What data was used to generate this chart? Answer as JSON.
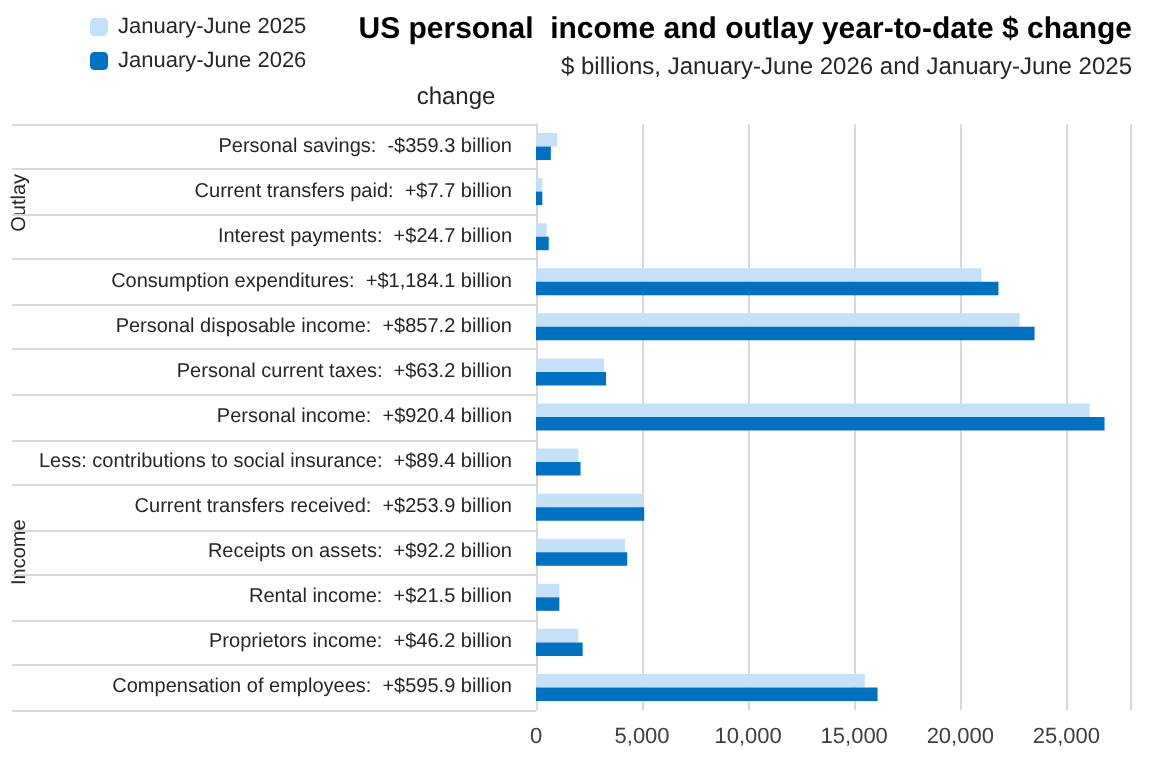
{
  "chart_data": {
    "type": "bar",
    "orientation": "horizontal",
    "title": "US personal  income and outlay year-to-date $ change",
    "subtitle": "$ billions, January-June 2026 and January-June 2025",
    "categories": [
      "Personal savings:  -$359.3 billion",
      "Current transfers paid:  +$7.7 billion",
      "Interest payments:  +$24.7 billion",
      "Consumption expenditures:  +$1,184.1 billion",
      "Personal disposable income:  +$857.2 billion",
      "Personal current taxes:  +$63.2 billion",
      "Personal income:  +$920.4 billion",
      "Less: contributions to social insurance:  +$89.4 billion",
      "Current transfers received:  +$253.9 billion",
      "Receipts on assets:  +$92.2 billion",
      "Rental income:  +$21.5 billion",
      "Proprietors income:  +$46.2 billion",
      "Compensation of employees:  +$595.9 billion"
    ],
    "series": [
      {
        "name": "January-June 2025",
        "color": "#c5e0f8",
        "values": [
          1000,
          300,
          500,
          21000,
          22800,
          3200,
          26100,
          2000,
          5000,
          4200,
          1100,
          2000,
          15500
        ]
      },
      {
        "name": "January-June 2026",
        "color": "#0070c0",
        "values": [
          700,
          300,
          600,
          21800,
          23500,
          3300,
          26800,
          2100,
          5100,
          4300,
          1100,
          2200,
          16100
        ]
      }
    ],
    "annotations": [
      "change",
      "Outlay",
      "Income"
    ],
    "xlim": [
      0,
      28000
    ],
    "xticks": [
      0,
      {
        "value": 5000,
        "label": "5,000"
      },
      {
        "value": 10000,
        "label": "10,000"
      },
      {
        "value": 15000,
        "label": "15,000"
      },
      {
        "value": 20000,
        "label": "20,000"
      },
      {
        "value": 25000,
        "label": "25,000"
      }
    ],
    "grid": "x",
    "legend": "top left"
  }
}
